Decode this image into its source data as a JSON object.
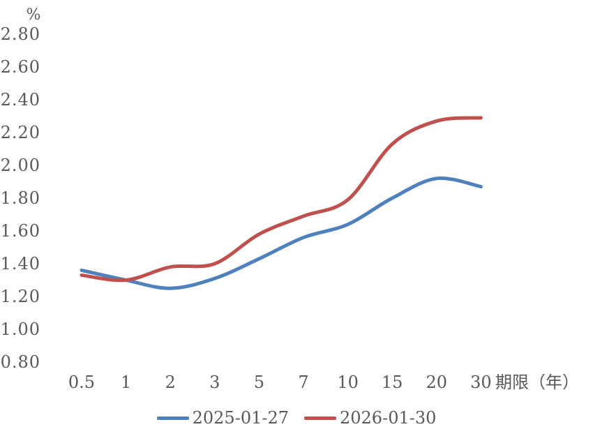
{
  "chart_data": {
    "type": "line",
    "title": "",
    "ylabel": "%",
    "xlabel": "期限（年）",
    "categories": [
      "0.5",
      "1",
      "2",
      "3",
      "5",
      "7",
      "10",
      "15",
      "20",
      "30"
    ],
    "series": [
      {
        "name": "2025-01-27",
        "color": "#4F81BD",
        "values": [
          1.36,
          1.3,
          1.25,
          1.31,
          1.43,
          1.56,
          1.64,
          1.8,
          1.92,
          1.87
        ]
      },
      {
        "name": "2026-01-30",
        "color": "#C0504D",
        "values": [
          1.33,
          1.3,
          1.38,
          1.4,
          1.58,
          1.69,
          1.79,
          2.13,
          2.27,
          2.29
        ]
      }
    ],
    "ylim": [
      0.8,
      2.8
    ],
    "ytick_step": 0.2,
    "ytick_labels": [
      "0.80",
      "1.00",
      "1.20",
      "1.40",
      "1.60",
      "1.80",
      "2.00",
      "2.20",
      "2.40",
      "2.60",
      "2.80"
    ],
    "grid": false,
    "axes_lines": false,
    "smoothed": true,
    "legend_position": "bottom",
    "text_color": "#595959"
  }
}
